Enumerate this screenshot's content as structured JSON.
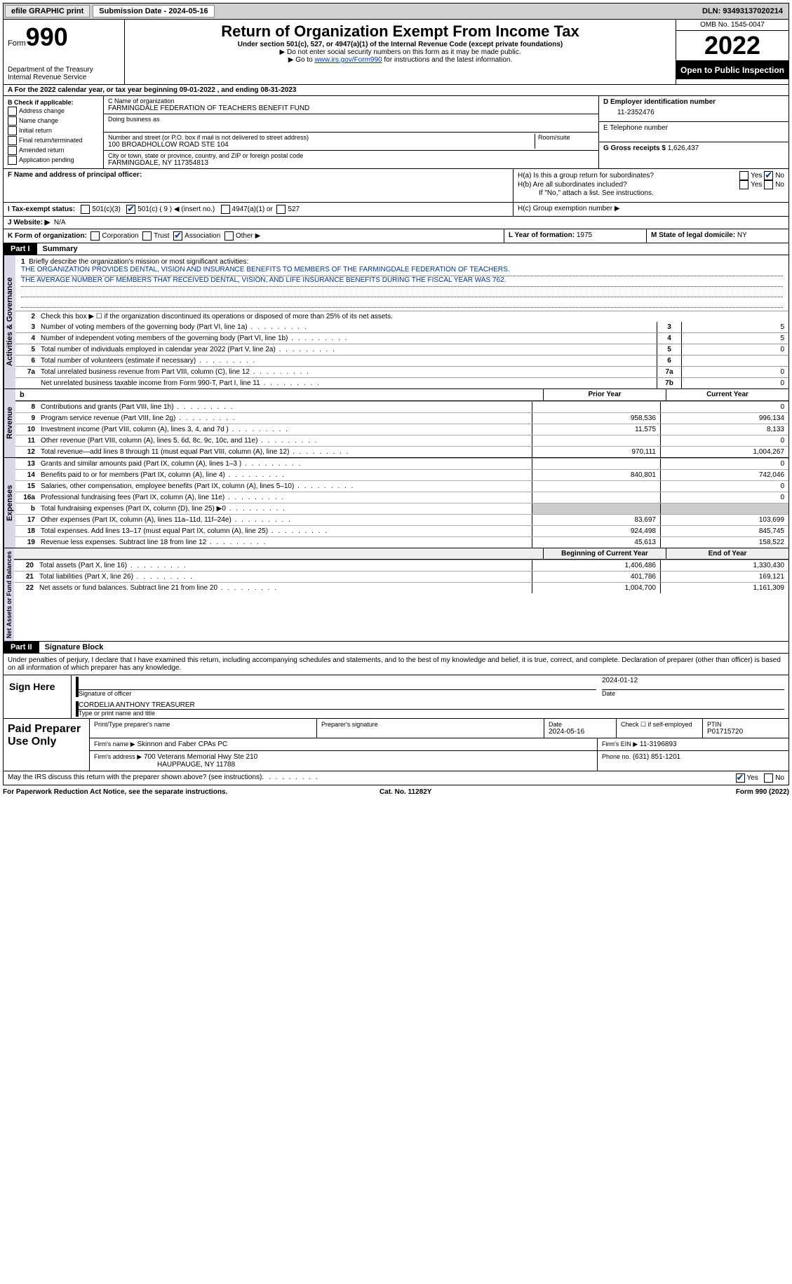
{
  "top": {
    "efile": "efile GRAPHIC print",
    "sub_date_lbl": "Submission Date - 2024-05-16",
    "dln": "DLN: 93493137020214"
  },
  "header": {
    "form": "Form",
    "num": "990",
    "dept": "Department of the Treasury",
    "irs": "Internal Revenue Service",
    "title": "Return of Organization Exempt From Income Tax",
    "sub": "Under section 501(c), 527, or 4947(a)(1) of the Internal Revenue Code (except private foundations)",
    "note1": "▶ Do not enter social security numbers on this form as it may be made public.",
    "note2_pre": "▶ Go to ",
    "note2_link": "www.irs.gov/Form990",
    "note2_post": " for instructions and the latest information.",
    "omb": "OMB No. 1545-0047",
    "year": "2022",
    "open": "Open to Public Inspection"
  },
  "a_line": "A For the 2022 calendar year, or tax year beginning 09-01-2022     , and ending 08-31-2023",
  "b": {
    "hdr": "B Check if applicable:",
    "addr_change": "Address change",
    "name_change": "Name change",
    "initial": "Initial return",
    "final": "Final return/terminated",
    "amended": "Amended return",
    "app_pending": "Application pending"
  },
  "c": {
    "name_lbl": "C Name of organization",
    "name": "FARMINGDALE FEDERATION OF TEACHERS BENEFIT FUND",
    "dba_lbl": "Doing business as",
    "addr_lbl": "Number and street (or P.O. box if mail is not delivered to street address)",
    "room_lbl": "Room/suite",
    "addr": "100 BROADHOLLOW ROAD STE 104",
    "city_lbl": "City or town, state or province, country, and ZIP or foreign postal code",
    "city": "FARMINGDALE, NY  117354813"
  },
  "d": {
    "lbl": "D Employer identification number",
    "val": "11-2352476"
  },
  "e": {
    "lbl": "E Telephone number",
    "val": ""
  },
  "g": {
    "lbl": "G Gross receipts $",
    "val": "1,626,437"
  },
  "f": {
    "lbl": "F  Name and address of principal officer:",
    "val": ""
  },
  "h": {
    "a": "H(a)  Is this a group return for subordinates?",
    "b": "H(b)  Are all subordinates included?",
    "ifno": "If \"No,\" attach a list. See instructions.",
    "c": "H(c)  Group exemption number ▶"
  },
  "i": {
    "lbl": "I  Tax-exempt status:",
    "c3": "501(c)(3)",
    "c_other": "501(c) ( 9 ) ◀ (insert no.)",
    "a1": "4947(a)(1) or",
    "s527": "527"
  },
  "j": {
    "lbl": "J  Website: ▶",
    "val": "N/A"
  },
  "k": {
    "lbl": "K Form of organization:",
    "corp": "Corporation",
    "trust": "Trust",
    "assoc": "Association",
    "other": "Other ▶"
  },
  "l": {
    "lbl": "L Year of formation:",
    "val": "1975"
  },
  "m": {
    "lbl": "M State of legal domicile:",
    "val": "NY"
  },
  "part1": {
    "hdr": "Part I",
    "title": "Summary"
  },
  "mission": {
    "lbl": "Briefly describe the organization's mission or most significant activities:",
    "l1": "THE ORGANIZATION PROVIDES DENTAL, VISION AND INSURANCE BENEFITS TO MEMBERS OF THE FARMINGDALE FEDERATION OF TEACHERS.",
    "l2": "THE AVERAGE NUMBER OF MEMBERS THAT RECEIVED DENTAL, VISION, AND LIFE INSURANCE BENEFITS DURING THE FISCAL YEAR WAS 762."
  },
  "q2": "Check this box ▶ ☐ if the organization discontinued its operations or disposed of more than 25% of its net assets.",
  "summary_rows": [
    {
      "n": "3",
      "t": "Number of voting members of the governing body (Part VI, line 1a)",
      "box": "3",
      "v": "5"
    },
    {
      "n": "4",
      "t": "Number of independent voting members of the governing body (Part VI, line 1b)",
      "box": "4",
      "v": "5"
    },
    {
      "n": "5",
      "t": "Total number of individuals employed in calendar year 2022 (Part V, line 2a)",
      "box": "5",
      "v": "0"
    },
    {
      "n": "6",
      "t": "Total number of volunteers (estimate if necessary)",
      "box": "6",
      "v": ""
    },
    {
      "n": "7a",
      "t": "Total unrelated business revenue from Part VIII, column (C), line 12",
      "box": "7a",
      "v": "0"
    },
    {
      "n": "",
      "t": "Net unrelated business taxable income from Form 990-T, Part I, line 11",
      "box": "7b",
      "v": "0"
    }
  ],
  "col_hdr": {
    "prior": "Prior Year",
    "curr": "Current Year"
  },
  "rev_label": "Revenue",
  "rev": [
    {
      "n": "8",
      "t": "Contributions and grants (Part VIII, line 1h)",
      "p": "",
      "c": "0"
    },
    {
      "n": "9",
      "t": "Program service revenue (Part VIII, line 2g)",
      "p": "958,536",
      "c": "996,134"
    },
    {
      "n": "10",
      "t": "Investment income (Part VIII, column (A), lines 3, 4, and 7d )",
      "p": "11,575",
      "c": "8,133"
    },
    {
      "n": "11",
      "t": "Other revenue (Part VIII, column (A), lines 5, 6d, 8c, 9c, 10c, and 11e)",
      "p": "",
      "c": "0"
    },
    {
      "n": "12",
      "t": "Total revenue—add lines 8 through 11 (must equal Part VIII, column (A), line 12)",
      "p": "970,111",
      "c": "1,004,267"
    }
  ],
  "exp_label": "Expenses",
  "exp": [
    {
      "n": "13",
      "t": "Grants and similar amounts paid (Part IX, column (A), lines 1–3 )",
      "p": "",
      "c": "0"
    },
    {
      "n": "14",
      "t": "Benefits paid to or for members (Part IX, column (A), line 4)",
      "p": "840,801",
      "c": "742,046"
    },
    {
      "n": "15",
      "t": "Salaries, other compensation, employee benefits (Part IX, column (A), lines 5–10)",
      "p": "",
      "c": "0"
    },
    {
      "n": "16a",
      "t": "Professional fundraising fees (Part IX, column (A), line 11e)",
      "p": "",
      "c": "0"
    },
    {
      "n": "b",
      "t": "Total fundraising expenses (Part IX, column (D), line 25) ▶0",
      "p": "GREY",
      "c": "GREY"
    },
    {
      "n": "17",
      "t": "Other expenses (Part IX, column (A), lines 11a–11d, 11f–24e)",
      "p": "83,697",
      "c": "103,699"
    },
    {
      "n": "18",
      "t": "Total expenses. Add lines 13–17 (must equal Part IX, column (A), line 25)",
      "p": "924,498",
      "c": "845,745"
    },
    {
      "n": "19",
      "t": "Revenue less expenses. Subtract line 18 from line 12",
      "p": "45,613",
      "c": "158,522"
    }
  ],
  "na_label": "Net Assets or Fund Balances",
  "na_hdr": {
    "b": "Beginning of Current Year",
    "e": "End of Year"
  },
  "na": [
    {
      "n": "20",
      "t": "Total assets (Part X, line 16)",
      "p": "1,406,486",
      "c": "1,330,430"
    },
    {
      "n": "21",
      "t": "Total liabilities (Part X, line 26)",
      "p": "401,786",
      "c": "169,121"
    },
    {
      "n": "22",
      "t": "Net assets or fund balances. Subtract line 21 from line 20",
      "p": "1,004,700",
      "c": "1,161,309"
    }
  ],
  "part2": {
    "hdr": "Part II",
    "title": "Signature Block"
  },
  "penalties": "Under penalties of perjury, I declare that I have examined this return, including accompanying schedules and statements, and to the best of my knowledge and belief, it is true, correct, and complete. Declaration of preparer (other than officer) is based on all information of which preparer has any knowledge.",
  "sign": {
    "here": "Sign Here",
    "sig_lbl": "Signature of officer",
    "date_lbl": "Date",
    "date": "2024-01-12",
    "name": "CORDELIA ANTHONY  TREASURER",
    "name_lbl": "Type or print name and title"
  },
  "prep": {
    "title": "Paid Preparer Use Only",
    "pname_lbl": "Print/Type preparer's name",
    "psig_lbl": "Preparer's signature",
    "pdate_lbl": "Date",
    "pdate": "2024-05-16",
    "self_lbl": "Check ☐ if self-employed",
    "ptin_lbl": "PTIN",
    "ptin": "P01715720",
    "firm_name_lbl": "Firm's name    ▶",
    "firm_name": "Skinnon and Faber CPAs PC",
    "firm_ein_lbl": "Firm's EIN ▶",
    "firm_ein": "11-3196893",
    "firm_addr_lbl": "Firm's address ▶",
    "firm_addr1": "700 Veterans Memorial Hwy Ste 210",
    "firm_addr2": "HAUPPAUGE, NY  11788",
    "phone_lbl": "Phone no.",
    "phone": "(631) 851-1201"
  },
  "discuss": "May the IRS discuss this return with the preparer shown above? (see instructions)",
  "footer": {
    "pra": "For Paperwork Reduction Act Notice, see the separate instructions.",
    "cat": "Cat. No. 11282Y",
    "form": "Form 990 (2022)"
  },
  "yes": "Yes",
  "no": "No"
}
